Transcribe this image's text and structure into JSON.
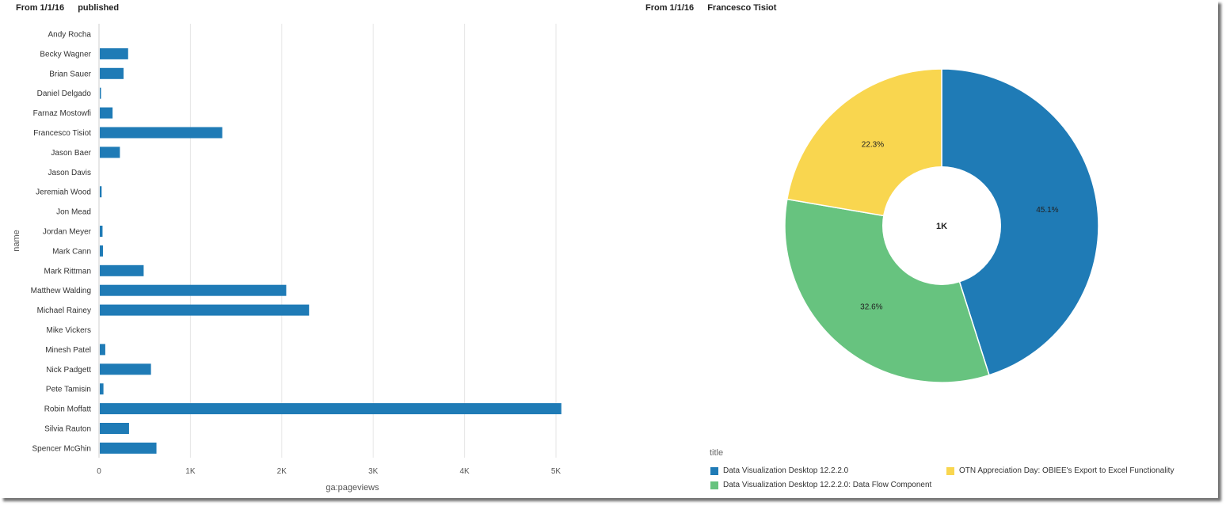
{
  "left_header": {
    "filter": "From 1/1/16",
    "label": "published"
  },
  "right_header": {
    "filter": "From 1/1/16",
    "label": "Francesco Tisiot"
  },
  "colors": {
    "bar": "#1f7bb6",
    "grid": "#e6e6e6",
    "slice1": "#1f7bb6",
    "slice2": "#67c37f",
    "slice3": "#f9d64f"
  },
  "chart_data": [
    {
      "type": "bar",
      "orientation": "horizontal",
      "categories": [
        "Andy Rocha",
        "Becky Wagner",
        "Brian Sauer",
        "Daniel Delgado",
        "Farnaz Mostowfi",
        "Francesco Tisiot",
        "Jason Baer",
        "Jason Davis",
        "Jeremiah Wood",
        "Jon Mead",
        "Jordan Meyer",
        "Mark Cann",
        "Mark Rittman",
        "Matthew Walding",
        "Michael Rainey",
        "Mike Vickers",
        "Minesh Patel",
        "Nick Padgett",
        "Pete Tamisin",
        "Robin Moffatt",
        "Silvia Rauton",
        "Spencer McGhin"
      ],
      "values": [
        0,
        310,
        260,
        10,
        140,
        1340,
        220,
        0,
        20,
        0,
        30,
        35,
        480,
        2040,
        2290,
        0,
        60,
        560,
        40,
        5050,
        320,
        620
      ],
      "xlabel": "ga:pageviews",
      "ylabel": "name",
      "xlim": [
        0,
        5200
      ],
      "xticks": [
        0,
        1000,
        2000,
        3000,
        4000,
        5000
      ],
      "xtick_labels": [
        "0",
        "1K",
        "2K",
        "3K",
        "4K",
        "5K"
      ],
      "grid": true
    },
    {
      "type": "pie",
      "donut": true,
      "center_label": "1K",
      "slices": [
        {
          "name": "Data Visualization Desktop 12.2.2.0",
          "value": 45.1,
          "label": "45.1%",
          "color": "#1f7bb6"
        },
        {
          "name": "Data Visualization Desktop 12.2.2.0: Data Flow Component",
          "value": 32.6,
          "label": "32.6%",
          "color": "#67c37f"
        },
        {
          "name": "OTN Appreciation Day: OBIEE's Export to Excel Functionality",
          "value": 22.3,
          "label": "22.3%",
          "color": "#f9d64f"
        }
      ],
      "legend_title": "title",
      "legend_position": "bottom"
    }
  ]
}
